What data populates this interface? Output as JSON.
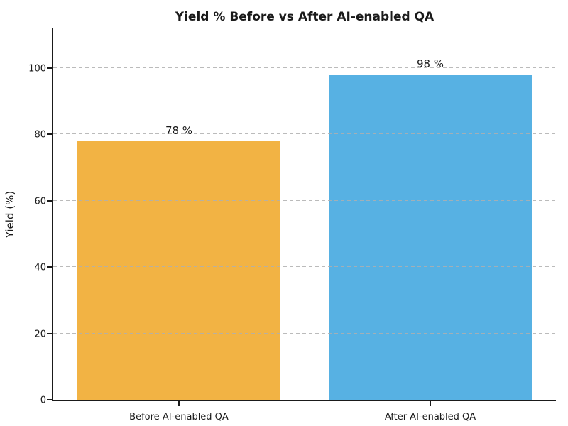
{
  "chart_data": {
    "type": "bar",
    "title": "Yield % Before vs After AI-enabled QA",
    "ylabel": "Yield (%)",
    "xlabel": "",
    "categories": [
      "Before AI-enabled QA",
      "After AI-enabled QA"
    ],
    "values": [
      78,
      98
    ],
    "value_labels": [
      "78 %",
      "98 %"
    ],
    "bar_colors": [
      "#F2B344",
      "#57B1E3"
    ],
    "ylim": [
      0,
      112
    ],
    "yticks": [
      0,
      20,
      40,
      60,
      80,
      100
    ],
    "grid": "horizontal dashed gridlines at yticks",
    "legend_position": "none",
    "colors": {
      "grid": "#AFAFAF",
      "text": "#1A1A1A",
      "spine": "#1A1A1A",
      "background": "#FFFFFF"
    },
    "layout": {
      "bar_width_fraction_of_plot": 0.405,
      "spines_visible": [
        "left",
        "bottom"
      ]
    }
  }
}
